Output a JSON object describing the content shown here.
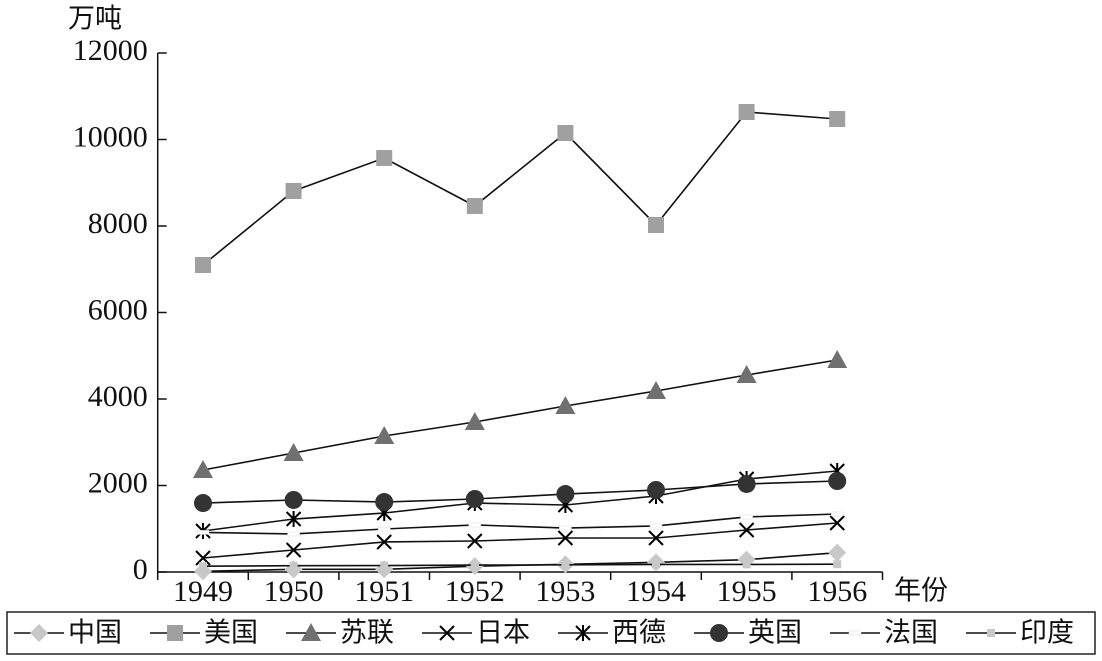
{
  "chart_data": {
    "type": "line",
    "y_label": "万吨",
    "x_label": "年份",
    "categories": [
      "1949",
      "1950",
      "1951",
      "1952",
      "1953",
      "1954",
      "1955",
      "1956"
    ],
    "ylim": [
      0,
      12000
    ],
    "yticks": [
      0,
      2000,
      4000,
      6000,
      8000,
      10000,
      12000
    ],
    "series": [
      {
        "name": "中国",
        "color": "#c8c8c8",
        "marker": "diamond",
        "values": [
          16,
          61,
          63,
          135,
          177,
          223,
          285,
          447
        ]
      },
      {
        "name": "美国",
        "color": "#a0a0a0",
        "marker": "square",
        "values": [
          7098,
          8809,
          9572,
          8462,
          10150,
          8023,
          10636,
          10474
        ]
      },
      {
        "name": "苏联",
        "color": "#707070",
        "marker": "triangle",
        "values": [
          2358,
          2751,
          3145,
          3468,
          3838,
          4185,
          4555,
          4902
        ]
      },
      {
        "name": "日本",
        "color": "#000000",
        "marker": "x",
        "values": [
          324,
          509,
          694,
          717,
          786,
          786,
          971,
          1133
        ]
      },
      {
        "name": "西德",
        "color": "#000000",
        "marker": "star",
        "values": [
          948,
          1225,
          1364,
          1595,
          1549,
          1757,
          2150,
          2335
        ]
      },
      {
        "name": "英国",
        "color": "#333333",
        "marker": "circle",
        "values": [
          1595,
          1665,
          1618,
          1688,
          1803,
          1896,
          2035,
          2104
        ]
      },
      {
        "name": "法国",
        "color": "#ffffff",
        "marker": "dash",
        "values": [
          915,
          879,
          994,
          1087,
          1017,
          1064,
          1272,
          1341
        ]
      },
      {
        "name": "印度",
        "color": "#c8c8c8",
        "marker": "smallsquare",
        "values": [
          135,
          145,
          150,
          160,
          165,
          175,
          175,
          180
        ]
      }
    ]
  }
}
